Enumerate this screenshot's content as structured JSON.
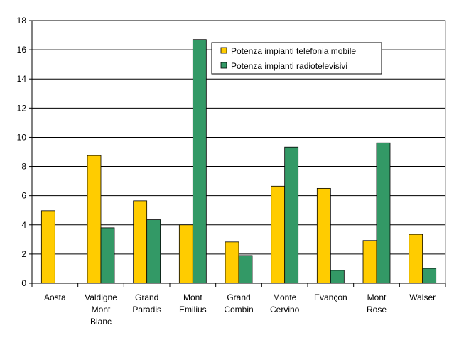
{
  "chart_data": {
    "type": "bar",
    "title": "",
    "xlabel": "",
    "ylabel": "",
    "ylim": [
      0,
      18
    ],
    "yticks": [
      "0",
      "2",
      "4",
      "6",
      "8",
      "10",
      "12",
      "14",
      "16",
      "18"
    ],
    "grid": true,
    "legend_position": "top-right",
    "categories": [
      [
        "Aosta"
      ],
      [
        "Valdigne",
        "Mont",
        "Blanc"
      ],
      [
        "Grand",
        "Paradis"
      ],
      [
        "Mont",
        "Emilius"
      ],
      [
        "Grand",
        "Combin"
      ],
      [
        "Monte",
        "Cervino"
      ],
      [
        "Evançon"
      ],
      [
        "Mont",
        "Rose"
      ],
      [
        "Walser"
      ]
    ],
    "series": [
      {
        "name": "Potenza impianti telefonia mobile",
        "color": "#FFCC00",
        "values": [
          4.97,
          8.75,
          5.65,
          4.0,
          2.83,
          6.65,
          6.5,
          2.93,
          3.35
        ]
      },
      {
        "name": "Potenza impianti radiotelevisivi",
        "color": "#339966",
        "values": [
          0,
          3.8,
          4.35,
          16.7,
          1.9,
          9.33,
          0.88,
          9.62,
          1.02
        ]
      }
    ]
  }
}
